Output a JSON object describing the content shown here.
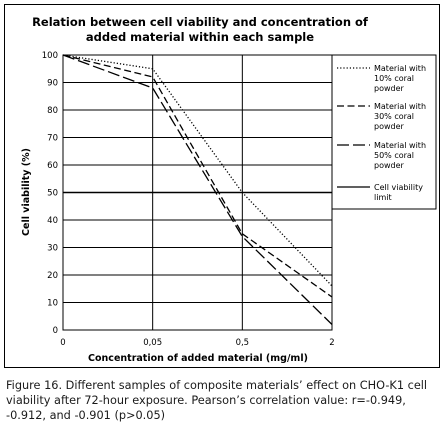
{
  "chart_data": {
    "type": "line",
    "title_lines": [
      "Relation between cell viability and concentration of",
      "added material  within each sample"
    ],
    "xlabel": "Concentration of added material (mg/ml)",
    "ylabel": "Cell viability (%)",
    "categories": [
      "0",
      "0,05",
      "0,5",
      "2"
    ],
    "ylim": [
      0,
      100
    ],
    "yticks": [
      "0",
      "10",
      "20",
      "30",
      "40",
      "50",
      "60",
      "70",
      "80",
      "90",
      "100"
    ],
    "grid": "horizontal",
    "legend_position": "right",
    "series": [
      {
        "name": "Material with 10% coral powder",
        "legend_lines": [
          "Material with",
          "10% coral",
          "powder"
        ],
        "style": "dotted",
        "values": [
          100,
          95,
          50,
          16
        ]
      },
      {
        "name": "Material with 30% coral powder",
        "legend_lines": [
          "Material with",
          "30% coral",
          "powder"
        ],
        "style": "dashed",
        "values": [
          100,
          92,
          35,
          12
        ]
      },
      {
        "name": "Material with 50% coral powder",
        "legend_lines": [
          "Material with",
          "50% coral",
          "powder"
        ],
        "style": "longdash",
        "values": [
          100,
          88,
          34,
          2
        ]
      },
      {
        "name": "Cell viability limit",
        "legend_lines": [
          "Cell viability",
          "limit"
        ],
        "style": "solid",
        "values": [
          50,
          50,
          50,
          50
        ]
      }
    ]
  },
  "caption": "Figure 16. Different samples of composite materials’ effect on CHO-K1 cell viability after 72-hour exposure. Pearson’s correlation value: r=-0.949, -0.912, and -0.901 (p>0.05)"
}
